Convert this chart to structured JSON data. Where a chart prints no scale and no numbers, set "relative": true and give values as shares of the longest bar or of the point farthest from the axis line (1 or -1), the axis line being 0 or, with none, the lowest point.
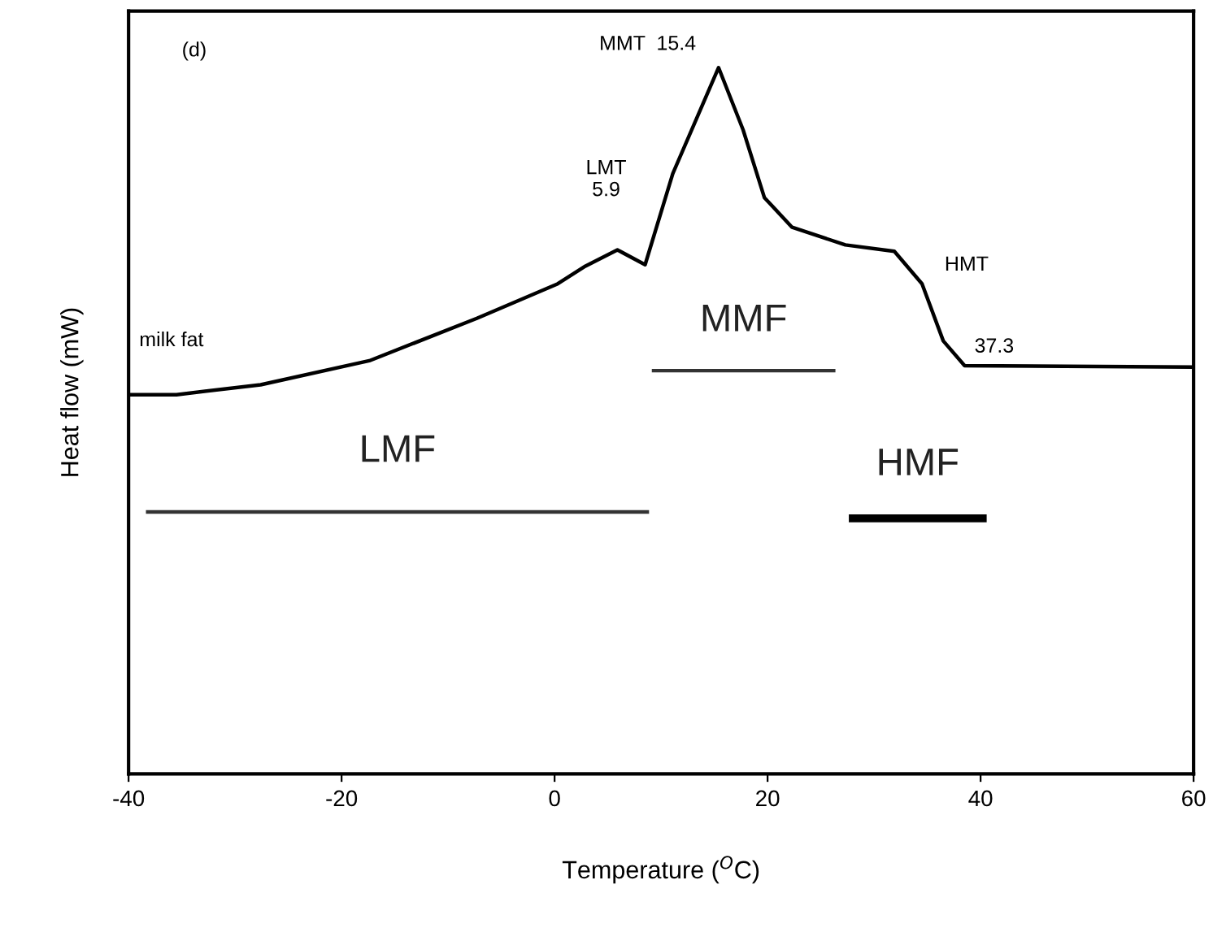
{
  "chart_data": {
    "type": "line",
    "relative": true,
    "xlabel": "Temperature ($^{O}$C)",
    "ylabel": "Heat flow (mW)",
    "xlim": [
      -40,
      60
    ],
    "xticks": [
      -40,
      -20,
      0,
      20,
      40,
      60
    ],
    "tick_labels": "x",
    "grid": false,
    "series": [
      {
        "color": "#000000",
        "x": [
          -40,
          -35.5,
          -27.6,
          -17.4,
          -7.3,
          0.3,
          2.9,
          5.9,
          8.5,
          11.1,
          15.4,
          17.7,
          19.7,
          22.3,
          27.3,
          31.9,
          34.5,
          36.5,
          38.5,
          60
        ],
        "values": [
          0.537,
          0.537,
          0.551,
          0.585,
          0.645,
          0.694,
          0.719,
          0.742,
          0.721,
          0.85,
          1,
          0.912,
          0.816,
          0.774,
          0.749,
          0.74,
          0.694,
          0.613,
          0.578,
          0.576
        ]
      },
      {
        "name": "LMF",
        "color": "#333333",
        "x": [
          -38.2,
          8.7
        ],
        "values": [
          0.371,
          0.371
        ]
      },
      {
        "name": "MMF",
        "color": "#333333",
        "x": [
          9.3,
          26.2
        ],
        "values": [
          0.571,
          0.571
        ]
      },
      {
        "name": "HMF",
        "color": "#000000",
        "x": [
          28.0,
          40.2
        ],
        "values": [
          0.362,
          0.362
        ]
      }
    ],
    "annotations": [
      "(d)",
      "milk fat",
      {
        "text": "LMT\n5.9",
        "x": 5.9,
        "y": 0.742
      },
      {
        "text": "MMT  15.4",
        "x": 15.4,
        "y": 1
      },
      {
        "text": "HMT",
        "x": 34.5,
        "y": 0.694
      },
      {
        "text": "37.3",
        "x": 37.3,
        "y": 0.578
      }
    ]
  }
}
